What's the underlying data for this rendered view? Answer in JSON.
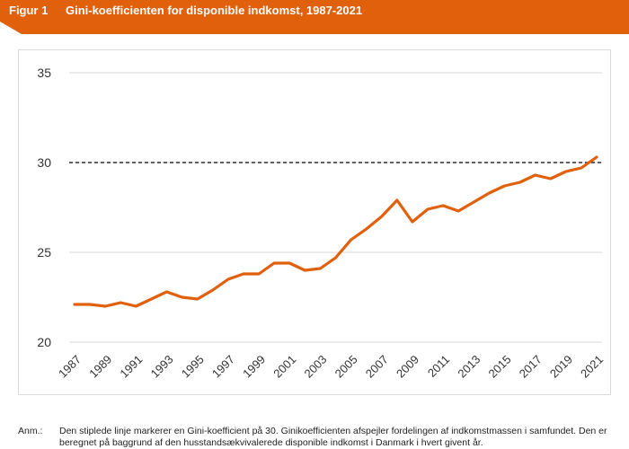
{
  "header": {
    "figure_label": "Figur 1",
    "title": "Gini-koefficienten for disponible indkomst, 1987-2021",
    "accent_color": "#E0600C"
  },
  "chart_data": {
    "type": "line",
    "title": "Gini-koefficienten for disponible indkomst, 1987-2021",
    "xlabel": "",
    "ylabel": "",
    "ylim": [
      20,
      35
    ],
    "yticks": [
      20,
      25,
      30,
      35
    ],
    "xtick_labels": [
      "1987",
      "1989",
      "1991",
      "1993",
      "1995",
      "1997",
      "1999",
      "2001",
      "2003",
      "2005",
      "2007",
      "2009",
      "2011",
      "2013",
      "2015",
      "2017",
      "2019",
      "2021"
    ],
    "grid": "horizontal",
    "series": [
      {
        "color": "#E0600C",
        "x": [
          1987,
          1988,
          1989,
          1990,
          1991,
          1992,
          1993,
          1994,
          1995,
          1996,
          1997,
          1998,
          1999,
          2000,
          2001,
          2002,
          2003,
          2004,
          2005,
          2006,
          2007,
          2008,
          2009,
          2010,
          2011,
          2012,
          2013,
          2014,
          2015,
          2016,
          2017,
          2018,
          2019,
          2020,
          2021
        ],
        "values": [
          22.1,
          22.1,
          22.0,
          22.2,
          22.0,
          22.4,
          22.8,
          22.5,
          22.4,
          22.9,
          23.5,
          23.8,
          23.8,
          24.4,
          24.4,
          24.0,
          24.1,
          24.7,
          25.7,
          26.3,
          27.0,
          27.9,
          26.7,
          27.4,
          27.6,
          27.3,
          27.8,
          28.3,
          28.7,
          28.9,
          29.3,
          29.1,
          29.5,
          29.7,
          30.3
        ]
      }
    ],
    "reference_line": {
      "value": 30,
      "style": "dashed",
      "color": "#000000"
    }
  },
  "note": {
    "label": "Anm.:",
    "text": "Den stiplede linje markerer en Gini-koefficient på 30. Ginikoefficienten afspejler fordelingen af indkomstmassen i samfundet. Den er beregnet på baggrund af den husstandsækvivalerede disponible indkomst i Danmark i hvert givent år."
  }
}
